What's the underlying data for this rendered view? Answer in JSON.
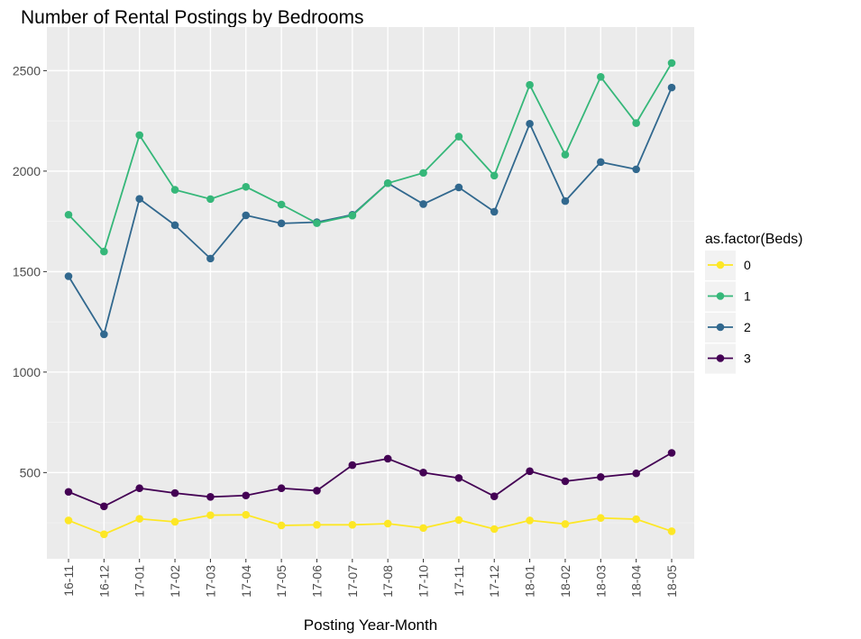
{
  "chart_data": {
    "type": "line",
    "title": "Number of Rental Postings by Bedrooms",
    "xlabel": "Posting Year-Month",
    "ylabel": "",
    "categories": [
      "16-11",
      "16-12",
      "17-01",
      "17-02",
      "17-03",
      "17-04",
      "17-05",
      "17-06",
      "17-07",
      "17-08",
      "17-10",
      "17-11",
      "17-12",
      "18-01",
      "18-02",
      "18-03",
      "18-04",
      "18-05"
    ],
    "ylim": [
      71,
      2717
    ],
    "yticks": [
      500,
      1000,
      1500,
      2000,
      2500
    ],
    "grid": true,
    "legend": {
      "title": "as.factor(Beds)",
      "placement": "right"
    },
    "series": [
      {
        "name": "0",
        "color": "#FDE725",
        "values": [
          262,
          193,
          270,
          255,
          288,
          290,
          237,
          240,
          240,
          246,
          224,
          264,
          219,
          262,
          244,
          274,
          268,
          208
        ]
      },
      {
        "name": "1",
        "color": "#35B779",
        "values": [
          1783,
          1600,
          2179,
          1907,
          1861,
          1922,
          1834,
          1741,
          1779,
          1940,
          1991,
          2172,
          1978,
          2429,
          2082,
          2469,
          2239,
          2538
        ]
      },
      {
        "name": "2",
        "color": "#31688E",
        "values": [
          1477,
          1188,
          1862,
          1731,
          1565,
          1780,
          1740,
          1746,
          1783,
          1940,
          1836,
          1919,
          1798,
          2236,
          1851,
          2045,
          2009,
          2416
        ]
      },
      {
        "name": "3",
        "color": "#440154",
        "values": [
          404,
          332,
          422,
          398,
          379,
          386,
          422,
          410,
          537,
          569,
          500,
          473,
          382,
          507,
          457,
          478,
          496,
          598
        ]
      }
    ]
  }
}
